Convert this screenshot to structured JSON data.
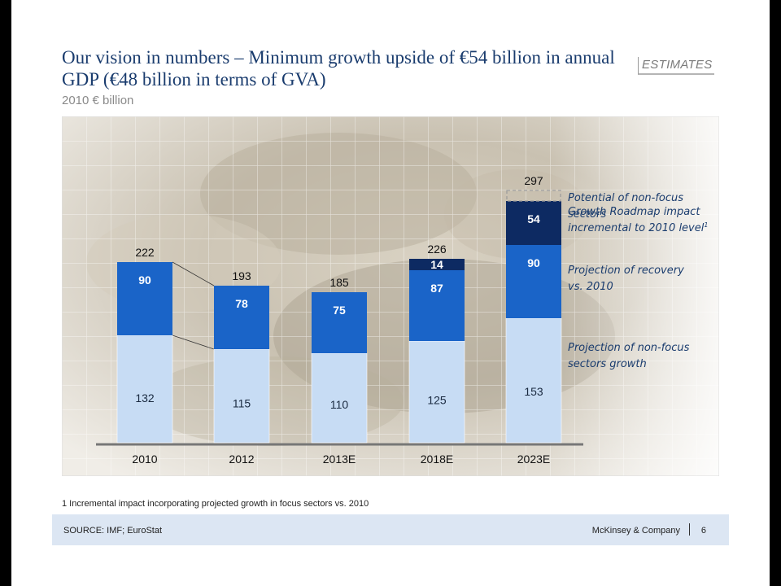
{
  "slide": {
    "title": "Our vision in numbers – Minimum growth upside of €54 billion in annual GDP (€48 billion in terms of GVA)",
    "subtitle": "2010 € billion",
    "stamp": "ESTIMATES",
    "footnote": "1 Incremental impact incorporating projected growth in focus sectors vs. 2010",
    "source": "SOURCE: IMF; EuroStat",
    "brand": "McKinsey & Company",
    "page_number": "6"
  },
  "colors": {
    "non_focus": "#c7dcf4",
    "recovery": "#1a64c8",
    "roadmap": "#0d2a62",
    "potential_border": "#9a9a9a",
    "title": "#1a3c6e",
    "annotation_text": "#1a3c6e"
  },
  "chart_data": {
    "type": "bar",
    "stacked": true,
    "categories": [
      "2010",
      "2012",
      "2013E",
      "2018E",
      "2023E"
    ],
    "series": [
      {
        "name": "Projection of non-focus sectors growth",
        "values": [
          132,
          115,
          110,
          125,
          153
        ]
      },
      {
        "name": "Projection of recovery vs. 2010",
        "values": [
          90,
          78,
          75,
          87,
          90
        ]
      },
      {
        "name": "Growth Roadmap impact incremental to 2010 level",
        "values": [
          null,
          null,
          null,
          14,
          54
        ]
      }
    ],
    "totals": [
      "222",
      "193",
      "185",
      "226",
      "297"
    ],
    "potential_non_focus": {
      "category": "2023E",
      "from": 297,
      "to": 310
    },
    "annotations": [
      {
        "key": "potential",
        "text": "Potential of non-focus sectors"
      },
      {
        "key": "roadmap",
        "text": "Growth Roadmap impact incremental to 2010 level",
        "superscript": "1"
      },
      {
        "key": "recovery",
        "text": "Projection of recovery vs. 2010"
      },
      {
        "key": "nonfocus",
        "text": "Projection of non-focus sectors growth"
      }
    ],
    "ylim": [
      0,
      330
    ],
    "grid": false,
    "legend": "right"
  }
}
